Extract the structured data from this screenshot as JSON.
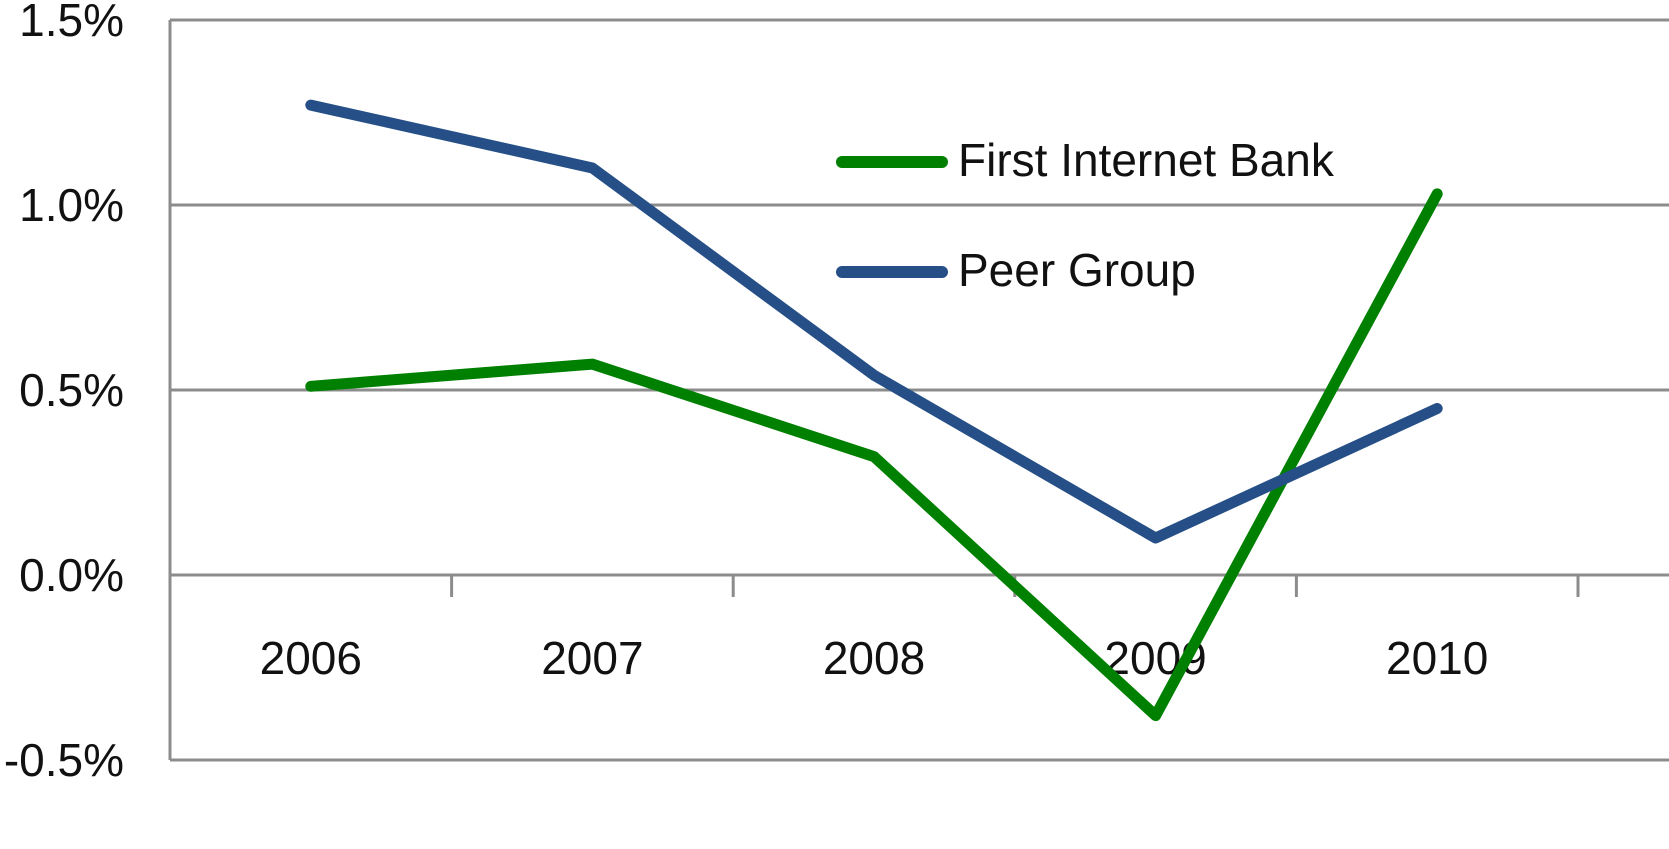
{
  "chart_data": {
    "type": "line",
    "categories": [
      "2006",
      "2007",
      "2008",
      "2009",
      "2010"
    ],
    "series": [
      {
        "name": "First Internet Bank",
        "color": "#008000",
        "values": [
          0.51,
          0.57,
          0.32,
          -0.38,
          1.03
        ]
      },
      {
        "name": "Peer Group",
        "color": "#254f86",
        "values": [
          1.27,
          1.1,
          0.54,
          0.1,
          0.45
        ]
      }
    ],
    "ylim": [
      -0.5,
      1.5
    ],
    "yticks": [
      {
        "value": -0.5,
        "label": "-0.5%"
      },
      {
        "value": 0,
        "label": "0.0%"
      },
      {
        "value": 0.5,
        "label": "0.5%"
      },
      {
        "value": 1,
        "label": "1.0%"
      },
      {
        "value": 1.5,
        "label": "1.5%"
      }
    ],
    "grid": true
  }
}
